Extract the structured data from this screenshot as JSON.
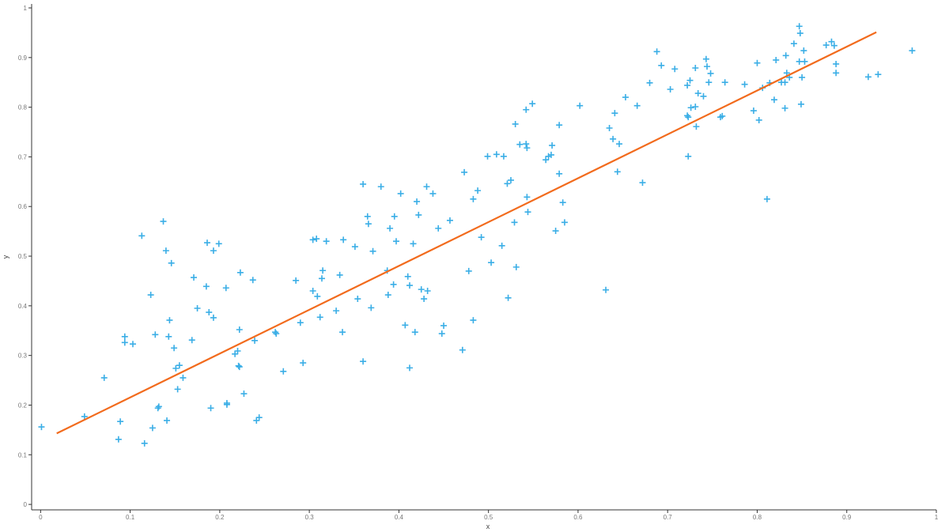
{
  "chart_data": {
    "type": "scatter",
    "xlabel": "x",
    "ylabel": "y",
    "xlim": [
      -0.01,
      1
    ],
    "ylim": [
      -0.011,
      1
    ],
    "xticks": [
      0,
      0.1,
      0.2,
      0.3,
      0.4,
      0.5,
      0.6,
      0.7,
      0.8,
      0.9,
      1
    ],
    "yticks": [
      0,
      0.1,
      0.2,
      0.3,
      0.4,
      0.5,
      0.6,
      0.7,
      0.8,
      0.9,
      1
    ],
    "grid": false,
    "series": [
      {
        "mode": "markers",
        "color": "#3aaee6",
        "x": [
          0.001,
          0.049,
          0.071,
          0.087,
          0.089,
          0.094,
          0.094,
          0.103,
          0.113,
          0.116,
          0.123,
          0.125,
          0.128,
          0.131,
          0.132,
          0.137,
          0.14,
          0.141,
          0.143,
          0.144,
          0.146,
          0.149,
          0.151,
          0.153,
          0.155,
          0.159,
          0.169,
          0.171,
          0.175,
          0.185,
          0.186,
          0.188,
          0.19,
          0.193,
          0.193,
          0.199,
          0.207,
          0.208,
          0.208,
          0.217,
          0.22,
          0.221,
          0.222,
          0.222,
          0.223,
          0.227,
          0.237,
          0.239,
          0.241,
          0.244,
          0.262,
          0.263,
          0.271,
          0.285,
          0.29,
          0.293,
          0.304,
          0.304,
          0.308,
          0.309,
          0.312,
          0.314,
          0.315,
          0.319,
          0.33,
          0.334,
          0.337,
          0.338,
          0.351,
          0.354,
          0.36,
          0.36,
          0.365,
          0.366,
          0.369,
          0.371,
          0.38,
          0.387,
          0.388,
          0.39,
          0.394,
          0.395,
          0.397,
          0.402,
          0.407,
          0.41,
          0.412,
          0.412,
          0.416,
          0.418,
          0.42,
          0.422,
          0.425,
          0.428,
          0.431,
          0.432,
          0.438,
          0.444,
          0.448,
          0.45,
          0.457,
          0.471,
          0.473,
          0.478,
          0.483,
          0.483,
          0.488,
          0.492,
          0.499,
          0.503,
          0.509,
          0.515,
          0.517,
          0.521,
          0.522,
          0.525,
          0.529,
          0.53,
          0.531,
          0.535,
          0.542,
          0.542,
          0.543,
          0.543,
          0.544,
          0.549,
          0.564,
          0.567,
          0.57,
          0.571,
          0.575,
          0.579,
          0.579,
          0.583,
          0.585,
          0.602,
          0.631,
          0.635,
          0.639,
          0.641,
          0.644,
          0.646,
          0.653,
          0.666,
          0.672,
          0.68,
          0.688,
          0.693,
          0.703,
          0.708,
          0.722,
          0.722,
          0.723,
          0.723,
          0.725,
          0.726,
          0.731,
          0.731,
          0.732,
          0.734,
          0.74,
          0.743,
          0.744,
          0.746,
          0.748,
          0.759,
          0.761,
          0.764,
          0.786,
          0.796,
          0.8,
          0.802,
          0.806,
          0.811,
          0.814,
          0.819,
          0.821,
          0.827,
          0.831,
          0.831,
          0.832,
          0.833,
          0.836,
          0.841,
          0.847,
          0.847,
          0.848,
          0.849,
          0.85,
          0.852,
          0.853,
          0.877,
          0.883,
          0.886,
          0.888,
          0.888,
          0.924,
          0.935,
          0.973
        ],
        "values": [
          0.156,
          0.177,
          0.255,
          0.131,
          0.167,
          0.338,
          0.326,
          0.323,
          0.541,
          0.123,
          0.422,
          0.154,
          0.342,
          0.194,
          0.197,
          0.57,
          0.511,
          0.169,
          0.338,
          0.371,
          0.486,
          0.315,
          0.274,
          0.232,
          0.28,
          0.255,
          0.331,
          0.457,
          0.395,
          0.439,
          0.527,
          0.387,
          0.194,
          0.376,
          0.511,
          0.525,
          0.436,
          0.204,
          0.201,
          0.303,
          0.309,
          0.279,
          0.352,
          0.277,
          0.467,
          0.223,
          0.452,
          0.33,
          0.169,
          0.175,
          0.347,
          0.344,
          0.268,
          0.451,
          0.366,
          0.285,
          0.533,
          0.43,
          0.535,
          0.419,
          0.377,
          0.455,
          0.471,
          0.53,
          0.39,
          0.462,
          0.347,
          0.533,
          0.519,
          0.414,
          0.288,
          0.645,
          0.58,
          0.565,
          0.396,
          0.51,
          0.64,
          0.471,
          0.422,
          0.556,
          0.443,
          0.58,
          0.53,
          0.626,
          0.361,
          0.459,
          0.441,
          0.275,
          0.525,
          0.347,
          0.61,
          0.583,
          0.433,
          0.414,
          0.64,
          0.43,
          0.626,
          0.556,
          0.344,
          0.36,
          0.572,
          0.311,
          0.669,
          0.47,
          0.615,
          0.371,
          0.632,
          0.538,
          0.701,
          0.487,
          0.705,
          0.521,
          0.701,
          0.646,
          0.416,
          0.653,
          0.568,
          0.766,
          0.478,
          0.725,
          0.795,
          0.726,
          0.718,
          0.619,
          0.589,
          0.807,
          0.694,
          0.701,
          0.704,
          0.723,
          0.551,
          0.764,
          0.666,
          0.608,
          0.568,
          0.803,
          0.432,
          0.758,
          0.736,
          0.788,
          0.67,
          0.726,
          0.82,
          0.803,
          0.648,
          0.849,
          0.912,
          0.884,
          0.836,
          0.877,
          0.844,
          0.783,
          0.78,
          0.701,
          0.854,
          0.799,
          0.801,
          0.879,
          0.761,
          0.828,
          0.822,
          0.897,
          0.882,
          0.85,
          0.868,
          0.78,
          0.782,
          0.85,
          0.846,
          0.793,
          0.889,
          0.774,
          0.839,
          0.615,
          0.849,
          0.815,
          0.895,
          0.85,
          0.85,
          0.798,
          0.904,
          0.869,
          0.86,
          0.928,
          0.963,
          0.892,
          0.949,
          0.806,
          0.86,
          0.914,
          0.892,
          0.925,
          0.932,
          0.924,
          0.887,
          0.869,
          0.861,
          0.866,
          0.914
        ]
      },
      {
        "mode": "line",
        "color": "#f26b1d",
        "x": [
          0.018,
          0.933
        ],
        "values": [
          0.143,
          0.951
        ]
      }
    ]
  }
}
